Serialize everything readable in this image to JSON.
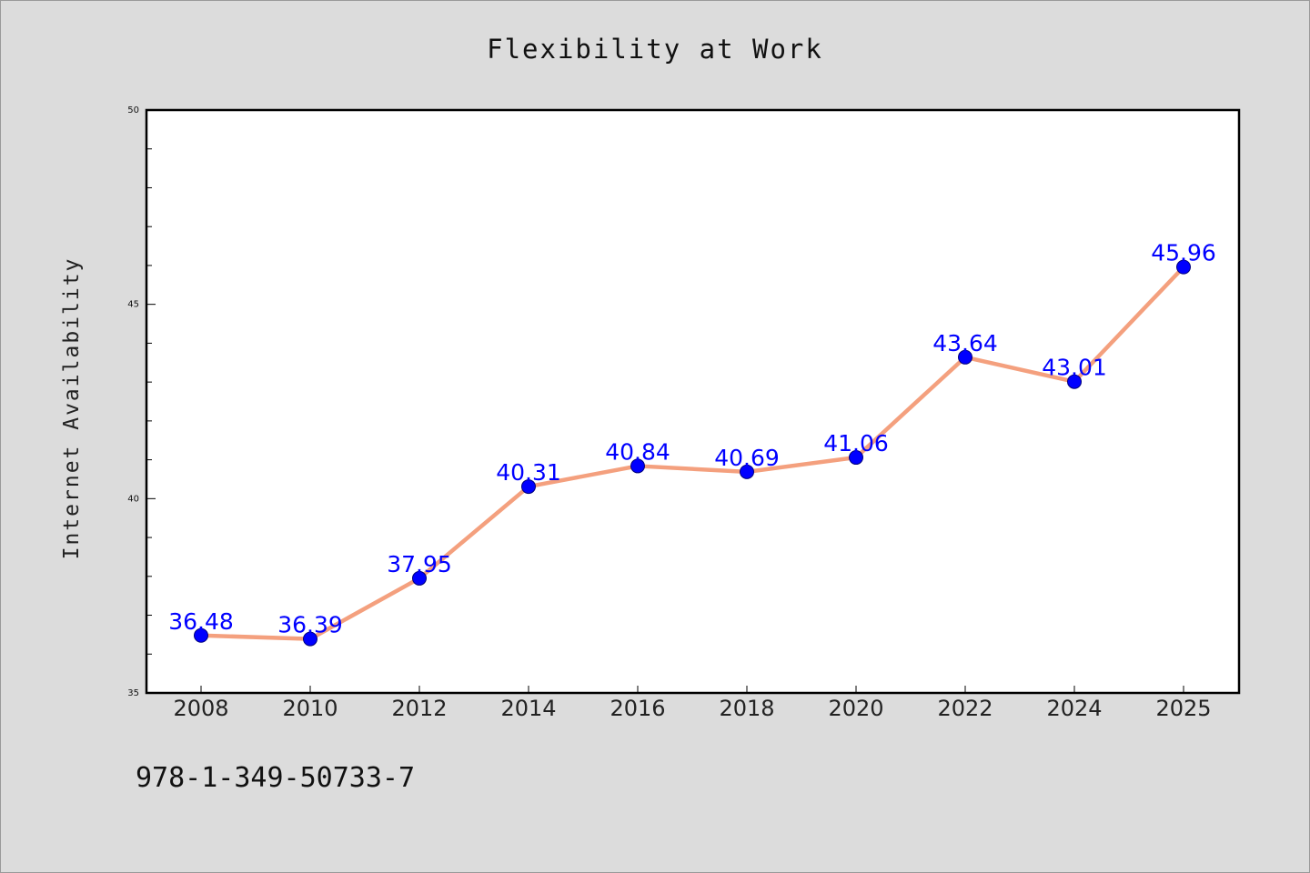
{
  "chart_data": {
    "type": "line",
    "title": "Flexibility at Work",
    "ylabel": "Internet Availability",
    "xlabel": "",
    "categories": [
      "2008",
      "2010",
      "2012",
      "2014",
      "2016",
      "2018",
      "2020",
      "2022",
      "2024",
      "2025"
    ],
    "series": [
      {
        "values": [
          36.48,
          36.39,
          37.95,
          40.31,
          40.84,
          40.69,
          41.06,
          43.64,
          43.01,
          45.96
        ],
        "labels": [
          "36.48",
          "36.39",
          "37.95",
          "40.31",
          "40.84",
          "40.69",
          "41.06",
          "43.64",
          "43.01",
          "45.96"
        ],
        "line_color": "#f4a07e",
        "marker_color": "#0000ff"
      }
    ],
    "ylim": [
      35,
      50
    ],
    "yticks": [
      "35",
      "40",
      "45",
      "50"
    ],
    "grid": false,
    "legend": "none",
    "footer": "978-1-349-50733-7"
  }
}
